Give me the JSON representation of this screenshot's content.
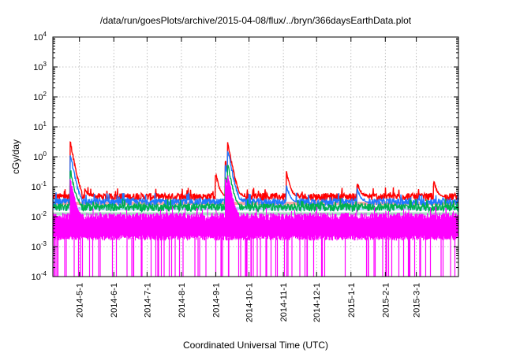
{
  "chart_data": {
    "type": "line",
    "title": "/data/run/goesPlots/archive/2015-04-08/flux/../bryn/366daysEarthData.plot",
    "xlabel": "Coordinated Universal Time (UTC)",
    "ylabel": "cGy/day",
    "y_scale": "log",
    "ylim": [
      0.0001,
      10000
    ],
    "xlim": [
      "2014-04-07",
      "2015-04-08"
    ],
    "x_ticks": [
      "2014-5-1",
      "2014-6-1",
      "2014-7-1",
      "2014-8-1",
      "2014-9-1",
      "2014-10-1",
      "2014-11-1",
      "2014-12-1",
      "2015-1-1",
      "2015-2-1",
      "2015-3-1"
    ],
    "y_ticks": [
      {
        "base": "10",
        "exp": "-4"
      },
      {
        "base": "10",
        "exp": "-3"
      },
      {
        "base": "10",
        "exp": "-2"
      },
      {
        "base": "10",
        "exp": "-1"
      },
      {
        "base": "10",
        "exp": "0"
      },
      {
        "base": "10",
        "exp": "1"
      },
      {
        "base": "10",
        "exp": "2"
      },
      {
        "base": "10",
        "exp": "3"
      },
      {
        "base": "10",
        "exp": "4"
      }
    ],
    "grid": true,
    "series": [
      {
        "color": "#ff0000",
        "baseline": 0.045,
        "spikes": [
          [
            "2014-04-23",
            3.3
          ],
          [
            "2014-05-06",
            0.09
          ],
          [
            "2014-09-01",
            0.3
          ],
          [
            "2014-09-10",
            0.75
          ],
          [
            "2014-09-12",
            3.2
          ],
          [
            "2014-09-18",
            0.2
          ],
          [
            "2014-11-04",
            0.33
          ],
          [
            "2015-01-07",
            0.14
          ],
          [
            "2015-03-17",
            0.16
          ]
        ]
      },
      {
        "color": "#1e78ff",
        "baseline": 0.03,
        "spikes": [
          [
            "2014-04-23",
            1.3
          ],
          [
            "2014-09-10",
            0.55
          ],
          [
            "2014-09-12",
            2.0
          ],
          [
            "2014-09-18",
            0.12
          ],
          [
            "2014-11-04",
            0.12
          ],
          [
            "2015-01-07",
            0.09
          ]
        ]
      },
      {
        "color": "#00b050",
        "baseline": 0.02,
        "spikes": [
          [
            "2014-04-23",
            0.4
          ],
          [
            "2014-09-10",
            0.25
          ],
          [
            "2014-09-12",
            0.6
          ]
        ]
      },
      {
        "color": "#ff00ff",
        "baseline": 0.01,
        "floor": 0.002,
        "dropout_to": 0.0001,
        "spikes": [
          [
            "2014-04-23",
            0.2
          ],
          [
            "2014-09-10",
            0.2
          ],
          [
            "2014-09-12",
            0.3
          ]
        ]
      }
    ]
  }
}
